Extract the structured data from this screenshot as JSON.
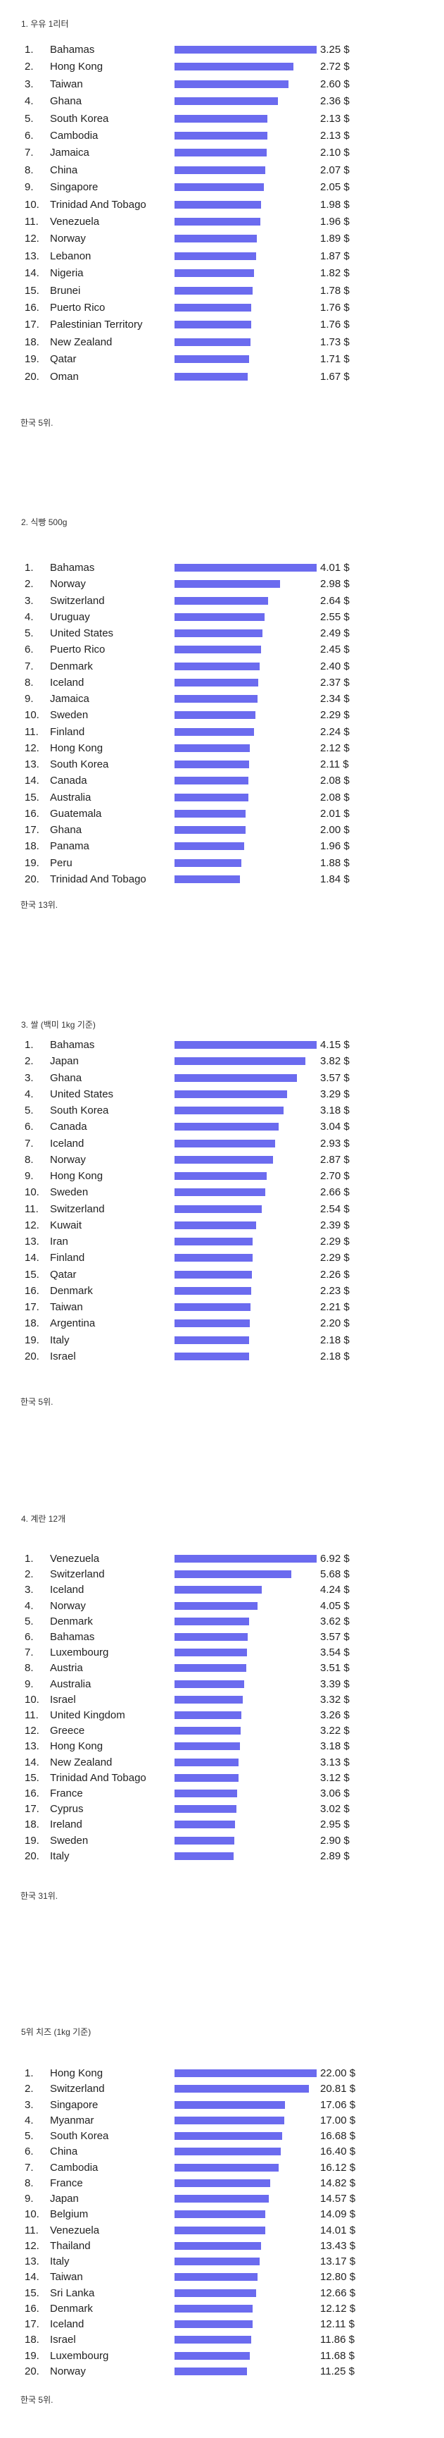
{
  "bar_color": "#6b6bef",
  "chart_data": [
    {
      "type": "bar",
      "title": "1. 우유 1리터",
      "footer": "한국 5위.",
      "unit": "$",
      "categories": [
        "Bahamas",
        "Hong Kong",
        "Taiwan",
        "Ghana",
        "South Korea",
        "Cambodia",
        "Jamaica",
        "China",
        "Singapore",
        "Trinidad And Tobago",
        "Venezuela",
        "Norway",
        "Lebanon",
        "Nigeria",
        "Brunei",
        "Puerto Rico",
        "Palestinian Territory",
        "New Zealand",
        "Qatar",
        "Oman"
      ],
      "values": [
        3.25,
        2.72,
        2.6,
        2.36,
        2.13,
        2.13,
        2.1,
        2.07,
        2.05,
        1.98,
        1.96,
        1.89,
        1.87,
        1.82,
        1.78,
        1.76,
        1.76,
        1.73,
        1.71,
        1.67
      ],
      "labels": [
        "3.25 $",
        "2.72 $",
        "2.60 $",
        "2.36 $",
        "2.13 $",
        "2.13 $",
        "2.10 $",
        "2.07 $",
        "2.05 $",
        "1.98 $",
        "1.96 $",
        "1.89 $",
        "1.87 $",
        "1.82 $",
        "1.78 $",
        "1.76 $",
        "1.76 $",
        "1.73 $",
        "1.71 $",
        "1.67 $"
      ]
    },
    {
      "type": "bar",
      "title": "2. 식빵 500g",
      "footer": "한국 13위.",
      "unit": "$",
      "categories": [
        "Bahamas",
        "Norway",
        "Switzerland",
        "Uruguay",
        "United States",
        "Puerto Rico",
        "Denmark",
        "Iceland",
        "Jamaica",
        "Sweden",
        "Finland",
        "Hong Kong",
        "South Korea",
        "Canada",
        "Australia",
        "Guatemala",
        "Ghana",
        "Panama",
        "Peru",
        "Trinidad And Tobago"
      ],
      "values": [
        4.01,
        2.98,
        2.64,
        2.55,
        2.49,
        2.45,
        2.4,
        2.37,
        2.34,
        2.29,
        2.24,
        2.12,
        2.11,
        2.08,
        2.08,
        2.01,
        2.0,
        1.96,
        1.88,
        1.84
      ],
      "labels": [
        "4.01 $",
        "2.98 $",
        "2.64 $",
        "2.55 $",
        "2.49 $",
        "2.45 $",
        "2.40 $",
        "2.37 $",
        "2.34 $",
        "2.29 $",
        "2.24 $",
        "2.12 $",
        "2.11 $",
        "2.08 $",
        "2.08 $",
        "2.01 $",
        "2.00 $",
        "1.96 $",
        "1.88 $",
        "1.84 $"
      ]
    },
    {
      "type": "bar",
      "title": "3. 쌀 (백미 1kg 기준)",
      "footer": "한국 5위.",
      "unit": "$",
      "categories": [
        "Bahamas",
        "Japan",
        "Ghana",
        "United States",
        "South Korea",
        "Canada",
        "Iceland",
        "Norway",
        "Hong Kong",
        "Sweden",
        "Switzerland",
        "Kuwait",
        "Iran",
        "Finland",
        "Qatar",
        "Denmark",
        "Taiwan",
        "Argentina",
        "Italy",
        "Israel"
      ],
      "values": [
        4.15,
        3.82,
        3.57,
        3.29,
        3.18,
        3.04,
        2.93,
        2.87,
        2.7,
        2.66,
        2.54,
        2.39,
        2.29,
        2.29,
        2.26,
        2.23,
        2.21,
        2.2,
        2.18,
        2.18
      ],
      "labels": [
        "4.15 $",
        "3.82 $",
        "3.57 $",
        "3.29 $",
        "3.18 $",
        "3.04 $",
        "2.93 $",
        "2.87 $",
        "2.70 $",
        "2.66 $",
        "2.54 $",
        "2.39 $",
        "2.29 $",
        "2.29 $",
        "2.26 $",
        "2.23 $",
        "2.21 $",
        "2.20 $",
        "2.18 $",
        "2.18 $"
      ]
    },
    {
      "type": "bar",
      "title": "4. 계란 12개",
      "footer": "한국 31위.",
      "unit": "$",
      "categories": [
        "Venezuela",
        "Switzerland",
        "Iceland",
        "Norway",
        "Denmark",
        "Bahamas",
        "Luxembourg",
        "Austria",
        "Australia",
        "Israel",
        "United Kingdom",
        "Greece",
        "Hong Kong",
        "New Zealand",
        "Trinidad And Tobago",
        "France",
        "Cyprus",
        "Ireland",
        "Sweden",
        "Italy"
      ],
      "values": [
        6.92,
        5.68,
        4.24,
        4.05,
        3.62,
        3.57,
        3.54,
        3.51,
        3.39,
        3.32,
        3.26,
        3.22,
        3.18,
        3.13,
        3.12,
        3.06,
        3.02,
        2.95,
        2.9,
        2.89
      ],
      "labels": [
        "6.92 $",
        "5.68 $",
        "4.24 $",
        "4.05 $",
        "3.62 $",
        "3.57 $",
        "3.54 $",
        "3.51 $",
        "3.39 $",
        "3.32 $",
        "3.26 $",
        "3.22 $",
        "3.18 $",
        "3.13 $",
        "3.12 $",
        "3.06 $",
        "3.02 $",
        "2.95 $",
        "2.90 $",
        "2.89 $"
      ]
    },
    {
      "type": "bar",
      "title": "5위 치즈 (1kg 기준)",
      "footer": "한국 5위.",
      "unit": "$",
      "categories": [
        "Hong Kong",
        "Switzerland",
        "Singapore",
        "Myanmar",
        "South Korea",
        "China",
        "Cambodia",
        "France",
        "Japan",
        "Belgium",
        "Venezuela",
        "Thailand",
        "Italy",
        "Taiwan",
        "Sri Lanka",
        "Denmark",
        "Iceland",
        "Israel",
        "Luxembourg",
        "Norway"
      ],
      "values": [
        22.0,
        20.81,
        17.06,
        17.0,
        16.68,
        16.4,
        16.12,
        14.82,
        14.57,
        14.09,
        14.01,
        13.43,
        13.17,
        12.8,
        12.66,
        12.12,
        12.11,
        11.86,
        11.68,
        11.25
      ],
      "labels": [
        "22.00 $",
        "20.81 $",
        "17.06 $",
        "17.00 $",
        "16.68 $",
        "16.40 $",
        "16.12 $",
        "14.82 $",
        "14.57 $",
        "14.09 $",
        "14.01 $",
        "13.43 $",
        "13.17 $",
        "12.80 $",
        "12.66 $",
        "12.12 $",
        "12.11 $",
        "11.86 $",
        "11.68 $",
        "11.25 $"
      ]
    }
  ]
}
